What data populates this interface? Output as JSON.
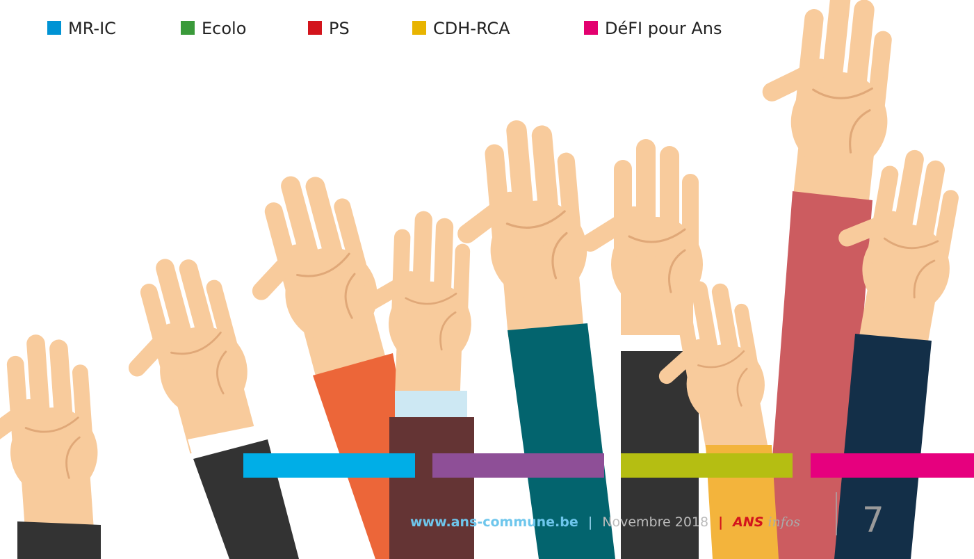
{
  "legend": [
    {
      "label": "MR-IC",
      "color": "#0093d4"
    },
    {
      "label": "Ecolo",
      "color": "#3a9a3a"
    },
    {
      "label": "PS",
      "color": "#d3141c"
    },
    {
      "label": "CDH-RCA",
      "color": "#e8b400"
    },
    {
      "label": "DéFI pour Ans",
      "color": "#e3006f"
    }
  ],
  "footer": {
    "website": "www.ans-commune.be",
    "separator": "|",
    "date": "Novembre 2018",
    "brand": "ANS",
    "brand_suffix": "infos",
    "page_number": "7"
  }
}
